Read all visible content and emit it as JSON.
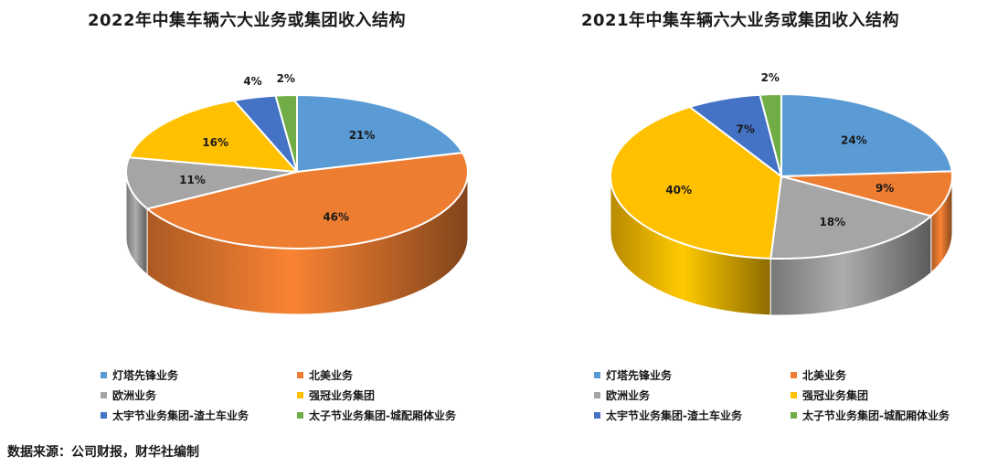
{
  "chart_data": [
    {
      "type": "pie",
      "title": "2022年中集车辆六大业务或集团收入结构",
      "categories": [
        "灯塔先锋业务",
        "北美业务",
        "欧洲业务",
        "强冠业务集团",
        "太宇节业务集团-渣土车业务",
        "太子节业务集团-城配厢体业务"
      ],
      "values": [
        21,
        46,
        11,
        16,
        4,
        2
      ],
      "labels": [
        "21%",
        "46%",
        "11%",
        "16%",
        "4%",
        "2%"
      ],
      "colors": [
        "#5b9bd5",
        "#ed7d31",
        "#a5a5a5",
        "#ffc000",
        "#4472c4",
        "#70ad47"
      ],
      "legend_position": "bottom"
    },
    {
      "type": "pie",
      "title": "2021年中集车辆六大业务或集团收入结构",
      "categories": [
        "灯塔先锋业务",
        "北美业务",
        "欧洲业务",
        "强冠业务集团",
        "太宇节业务集团-渣土车业务",
        "太子节业务集团-城配厢体业务"
      ],
      "values": [
        24,
        9,
        18,
        40,
        7,
        2
      ],
      "labels": [
        "24%",
        "9%",
        "18%",
        "40%",
        "7%",
        "2%"
      ],
      "colors": [
        "#5b9bd5",
        "#ed7d31",
        "#a5a5a5",
        "#ffc000",
        "#4472c4",
        "#70ad47"
      ],
      "legend_position": "bottom"
    }
  ],
  "source": "数据来源：公司财报，财华社编制"
}
